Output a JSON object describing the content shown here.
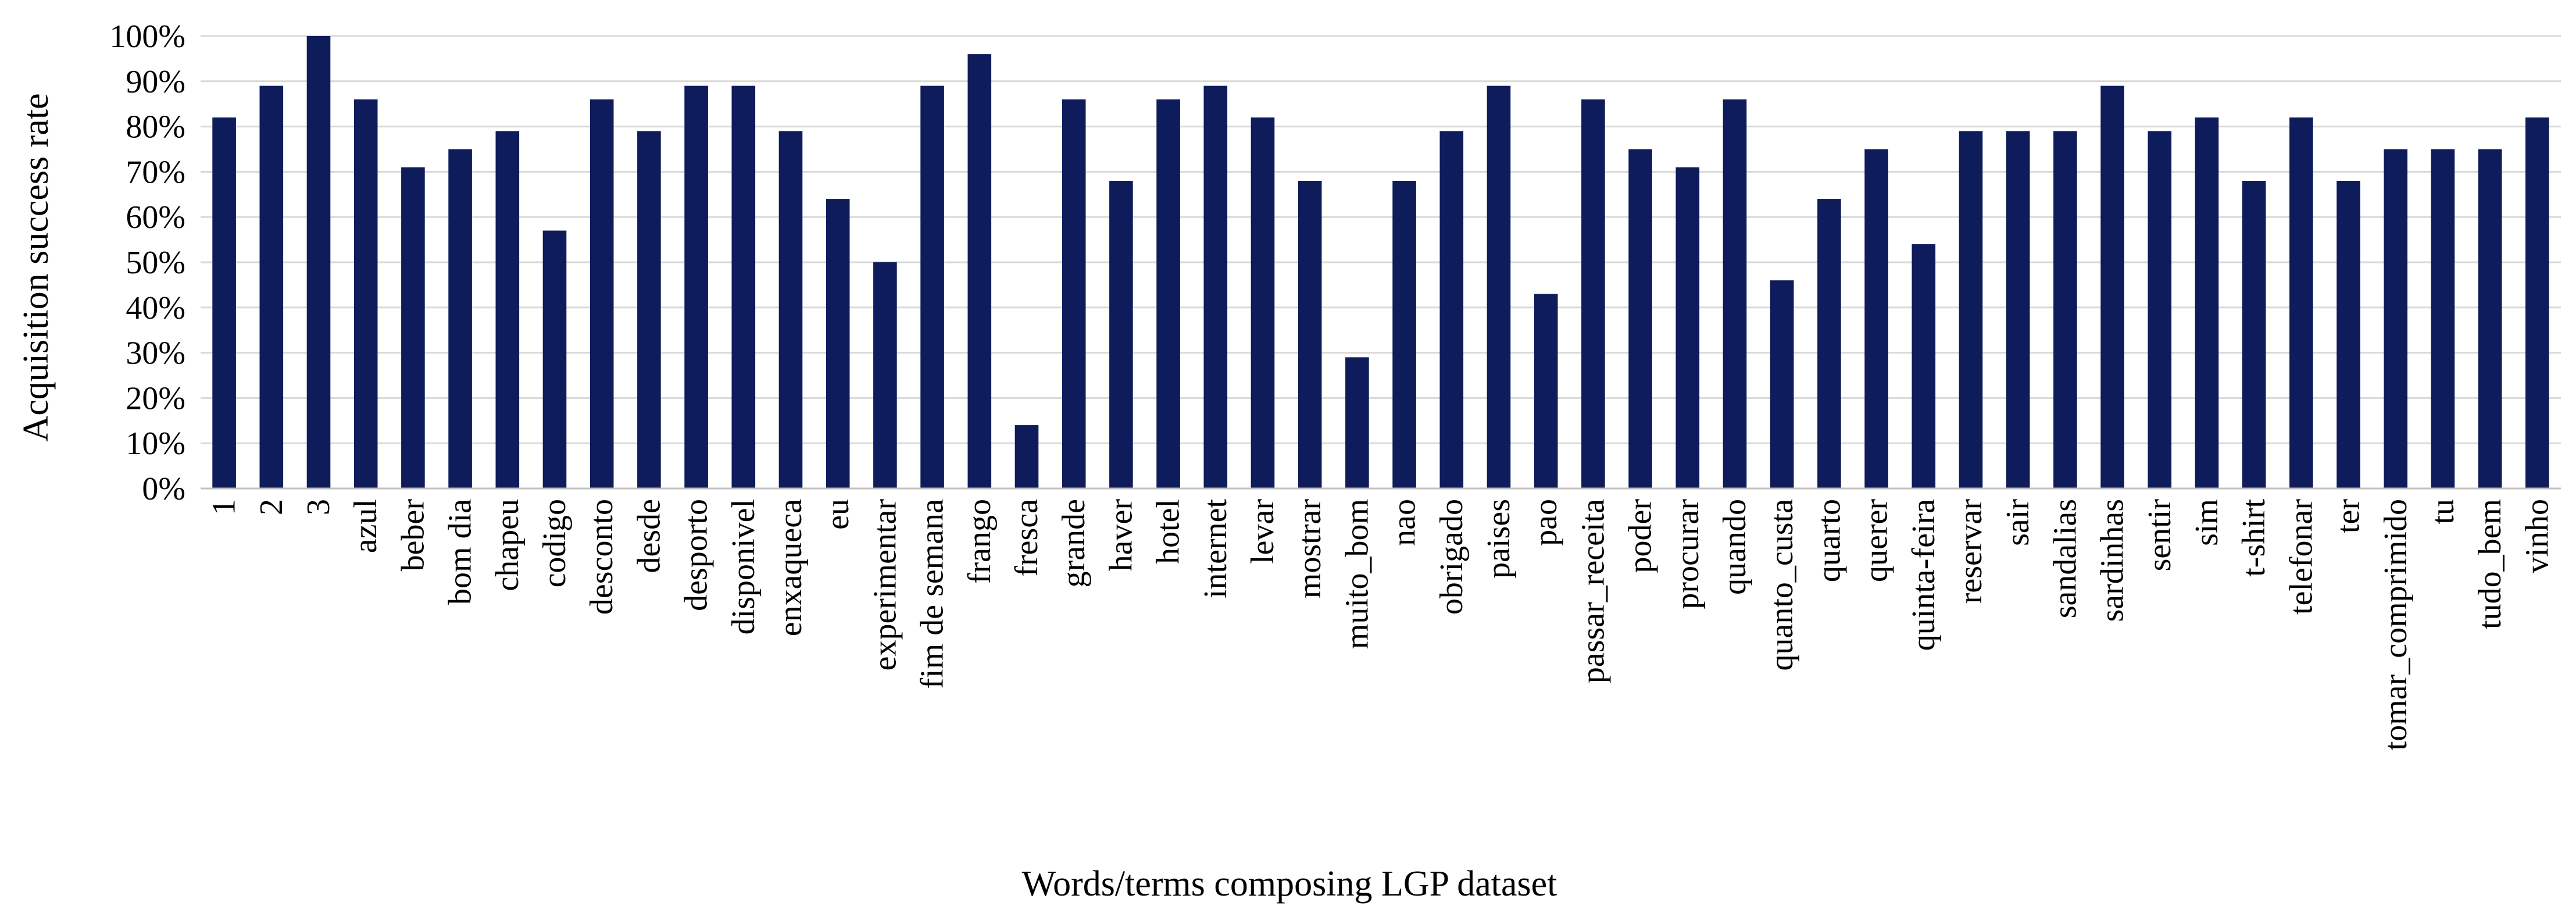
{
  "chart_data": {
    "type": "bar",
    "xlabel": "Words/terms composing LGP dataset",
    "ylabel": "Acquisition success rate",
    "ylim": [
      0,
      100
    ],
    "y_ticks": [
      "0%",
      "10%",
      "20%",
      "30%",
      "40%",
      "50%",
      "60%",
      "70%",
      "80%",
      "90%",
      "100%"
    ],
    "y_tick_values": [
      0,
      10,
      20,
      30,
      40,
      50,
      60,
      70,
      80,
      90,
      100
    ],
    "grid": true,
    "bar_color": "#0f1c5c",
    "categories": [
      "1",
      "2",
      "3",
      "azul",
      "beber",
      "bom dia",
      "chapeu",
      "codigo",
      "desconto",
      "desde",
      "desporto",
      "disponivel",
      "enxaqueca",
      "eu",
      "experimentar",
      "fim de semana",
      "frango",
      "fresca",
      "grande",
      "haver",
      "hotel",
      "internet",
      "levar",
      "mostrar",
      "muito_bom",
      "nao",
      "obrigado",
      "paises",
      "pao",
      "passar_receita",
      "poder",
      "procurar",
      "quando",
      "quanto_custa",
      "quarto",
      "querer",
      "quinta-feira",
      "reservar",
      "sair",
      "sandalias",
      "sardinhas",
      "sentir",
      "sim",
      "t-shirt",
      "telefonar",
      "ter",
      "tomar_comprimido",
      "tu",
      "tudo_bem",
      "vinho"
    ],
    "values": [
      82,
      89,
      100,
      86,
      71,
      75,
      79,
      57,
      86,
      79,
      89,
      89,
      79,
      64,
      50,
      89,
      96,
      14,
      86,
      68,
      86,
      89,
      82,
      68,
      29,
      68,
      79,
      89,
      43,
      86,
      75,
      71,
      86,
      46,
      64,
      75,
      54,
      79,
      79,
      79,
      89,
      79,
      82,
      68,
      82,
      68,
      75,
      75,
      75,
      82
    ]
  }
}
